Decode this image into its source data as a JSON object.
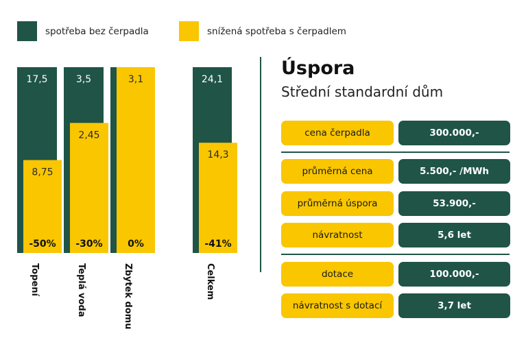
{
  "legend": {
    "items": [
      {
        "label": "spotřeba bez čerpadla",
        "color": "#1f5447"
      },
      {
        "label": "snížená spotřeba s čerpadlem",
        "color": "#f9c600"
      }
    ]
  },
  "chart_data": {
    "type": "bar",
    "categories": [
      "Topení",
      "Teplá voda",
      "Zbytek domu",
      "Celkem"
    ],
    "series": [
      {
        "name": "spotřeba bez čerpadla",
        "values": [
          17.5,
          3.5,
          3.1,
          24.1
        ],
        "labels": [
          "17,5",
          "3,5",
          "",
          "24,1"
        ],
        "color": "#1f5447"
      },
      {
        "name": "snížená spotřeba s čerpadlem",
        "values": [
          8.75,
          2.45,
          3.1,
          14.3
        ],
        "labels": [
          "8,75",
          "2,45",
          "3,1",
          "14,3"
        ],
        "color": "#f9c600"
      }
    ],
    "reduction_labels": [
      "-50%",
      "-30%",
      "0%",
      "-41%"
    ],
    "notes": "each category is normalized to its own full-height column; second series bar height = value / first series value"
  },
  "panel": {
    "title": "Úspora",
    "subtitle": "Střední standardní dům",
    "rows": [
      {
        "label": "cena čerpadla",
        "value": "300.000,-"
      },
      {
        "label": "průměrná cena",
        "value": "5.500,- /MWh"
      },
      {
        "label": "průměrná úspora",
        "value": "53.900,-"
      },
      {
        "label": "návratnost",
        "value": "5,6 let"
      },
      {
        "label": "dotace",
        "value": "100.000,-"
      },
      {
        "label": "návratnost s dotací",
        "value": "3,7 let"
      }
    ]
  }
}
